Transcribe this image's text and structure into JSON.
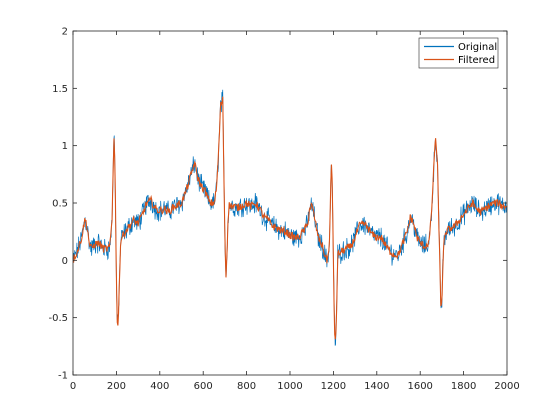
{
  "chart_data": {
    "type": "line",
    "title": "",
    "xlabel": "",
    "ylabel": "",
    "xlim": [
      0,
      2000
    ],
    "ylim": [
      -1,
      2
    ],
    "xticks": [
      0,
      200,
      400,
      600,
      800,
      1000,
      1200,
      1400,
      1600,
      1800,
      2000
    ],
    "yticks": [
      -1,
      -0.5,
      0,
      0.5,
      1,
      1.5,
      2
    ],
    "xtick_labels": [
      "0",
      "200",
      "400",
      "600",
      "800",
      "1000",
      "1200",
      "1400",
      "1600",
      "1800",
      "2000"
    ],
    "ytick_labels": [
      "-1",
      "-0.5",
      "0",
      "0.5",
      "1",
      "1.5",
      "2"
    ],
    "grid": false,
    "legend_position": "top-right",
    "noise_amplitude": 0.075,
    "series": [
      {
        "name": "Original",
        "color": "#0072BD",
        "x": [
          0,
          20,
          40,
          55,
          65,
          75,
          85,
          100,
          120,
          140,
          160,
          170,
          180,
          185,
          190,
          195,
          200,
          205,
          210,
          215,
          220,
          240,
          260,
          280,
          300,
          320,
          340,
          360,
          380,
          400,
          420,
          440,
          460,
          480,
          500,
          520,
          540,
          560,
          575,
          590,
          610,
          630,
          650,
          660,
          670,
          680,
          690,
          695,
          700,
          705,
          710,
          715,
          720,
          740,
          760,
          780,
          800,
          820,
          840,
          860,
          880,
          900,
          920,
          940,
          960,
          980,
          1000,
          1020,
          1040,
          1060,
          1080,
          1090,
          1100,
          1110,
          1120,
          1130,
          1140,
          1150,
          1160,
          1170,
          1180,
          1185,
          1190,
          1195,
          1200,
          1205,
          1210,
          1215,
          1220,
          1240,
          1260,
          1280,
          1300,
          1320,
          1340,
          1360,
          1380,
          1400,
          1420,
          1440,
          1460,
          1480,
          1500,
          1520,
          1540,
          1555,
          1570,
          1585,
          1600,
          1620,
          1640,
          1650,
          1660,
          1670,
          1680,
          1685,
          1690,
          1695,
          1700,
          1705,
          1710,
          1720,
          1740,
          1760,
          1780,
          1800,
          1820,
          1840,
          1860,
          1880,
          1900,
          1920,
          1940,
          1960,
          1980,
          2000
        ],
        "y": [
          0.0,
          0.08,
          0.2,
          0.36,
          0.3,
          0.15,
          0.1,
          0.14,
          0.15,
          0.1,
          0.1,
          0.12,
          0.35,
          0.8,
          1.15,
          0.6,
          -0.2,
          -0.6,
          -0.45,
          -0.1,
          0.18,
          0.25,
          0.3,
          0.35,
          0.32,
          0.4,
          0.5,
          0.52,
          0.45,
          0.43,
          0.45,
          0.42,
          0.46,
          0.48,
          0.5,
          0.6,
          0.72,
          0.85,
          0.72,
          0.65,
          0.6,
          0.5,
          0.5,
          0.6,
          0.9,
          1.35,
          1.4,
          0.8,
          0.2,
          -0.15,
          0.1,
          0.4,
          0.48,
          0.47,
          0.46,
          0.48,
          0.5,
          0.47,
          0.5,
          0.45,
          0.38,
          0.35,
          0.3,
          0.28,
          0.26,
          0.25,
          0.22,
          0.2,
          0.2,
          0.25,
          0.3,
          0.45,
          0.48,
          0.4,
          0.3,
          0.2,
          0.16,
          0.12,
          0.05,
          0.0,
          0.08,
          0.4,
          0.85,
          0.65,
          0.0,
          -0.6,
          -0.75,
          -0.4,
          0.05,
          0.08,
          0.1,
          0.12,
          0.2,
          0.3,
          0.32,
          0.28,
          0.22,
          0.2,
          0.2,
          0.13,
          0.08,
          0.05,
          0.05,
          0.15,
          0.25,
          0.38,
          0.32,
          0.2,
          0.15,
          0.12,
          0.15,
          0.35,
          0.7,
          1.1,
          0.8,
          0.4,
          0.0,
          -0.4,
          -0.35,
          0.0,
          0.15,
          0.25,
          0.28,
          0.3,
          0.35,
          0.4,
          0.45,
          0.5,
          0.45,
          0.42,
          0.45,
          0.48,
          0.5,
          0.5,
          0.47,
          0.48
        ]
      },
      {
        "name": "Filtered",
        "color": "#D95319",
        "x": [
          0,
          20,
          40,
          55,
          65,
          75,
          85,
          100,
          120,
          140,
          160,
          170,
          180,
          185,
          190,
          195,
          200,
          205,
          210,
          215,
          220,
          240,
          260,
          280,
          300,
          320,
          340,
          360,
          380,
          400,
          420,
          440,
          460,
          480,
          500,
          520,
          540,
          560,
          575,
          590,
          610,
          630,
          650,
          660,
          670,
          680,
          690,
          695,
          700,
          705,
          710,
          715,
          720,
          740,
          760,
          780,
          800,
          820,
          840,
          860,
          880,
          900,
          920,
          940,
          960,
          980,
          1000,
          1020,
          1040,
          1060,
          1080,
          1090,
          1100,
          1110,
          1120,
          1130,
          1140,
          1150,
          1160,
          1170,
          1180,
          1185,
          1190,
          1195,
          1200,
          1205,
          1210,
          1215,
          1220,
          1240,
          1260,
          1280,
          1300,
          1320,
          1340,
          1360,
          1380,
          1400,
          1420,
          1440,
          1460,
          1480,
          1500,
          1520,
          1540,
          1555,
          1570,
          1585,
          1600,
          1620,
          1640,
          1650,
          1660,
          1670,
          1680,
          1685,
          1690,
          1695,
          1700,
          1705,
          1710,
          1720,
          1740,
          1760,
          1780,
          1800,
          1820,
          1840,
          1860,
          1880,
          1900,
          1920,
          1940,
          1960,
          1980,
          2000
        ],
        "y": [
          0.0,
          0.08,
          0.2,
          0.36,
          0.3,
          0.15,
          0.1,
          0.14,
          0.15,
          0.1,
          0.1,
          0.12,
          0.35,
          0.8,
          1.15,
          0.6,
          -0.2,
          -0.6,
          -0.45,
          -0.1,
          0.18,
          0.25,
          0.3,
          0.35,
          0.32,
          0.4,
          0.5,
          0.52,
          0.45,
          0.43,
          0.45,
          0.42,
          0.46,
          0.48,
          0.5,
          0.6,
          0.72,
          0.85,
          0.72,
          0.65,
          0.6,
          0.5,
          0.5,
          0.6,
          0.9,
          1.35,
          1.4,
          0.8,
          0.2,
          -0.15,
          0.1,
          0.4,
          0.48,
          0.47,
          0.46,
          0.48,
          0.5,
          0.47,
          0.5,
          0.45,
          0.38,
          0.35,
          0.3,
          0.28,
          0.26,
          0.25,
          0.22,
          0.2,
          0.2,
          0.25,
          0.3,
          0.45,
          0.48,
          0.4,
          0.3,
          0.2,
          0.16,
          0.12,
          0.05,
          0.0,
          0.08,
          0.4,
          0.85,
          0.65,
          0.0,
          -0.6,
          -0.75,
          -0.4,
          0.05,
          0.08,
          0.1,
          0.12,
          0.2,
          0.3,
          0.32,
          0.28,
          0.22,
          0.2,
          0.2,
          0.13,
          0.08,
          0.05,
          0.05,
          0.15,
          0.25,
          0.38,
          0.32,
          0.2,
          0.15,
          0.12,
          0.15,
          0.35,
          0.7,
          1.1,
          0.8,
          0.4,
          0.0,
          -0.4,
          -0.35,
          0.0,
          0.15,
          0.25,
          0.28,
          0.3,
          0.35,
          0.4,
          0.45,
          0.5,
          0.45,
          0.42,
          0.45,
          0.48,
          0.5,
          0.5,
          0.47,
          0.48
        ]
      }
    ]
  }
}
